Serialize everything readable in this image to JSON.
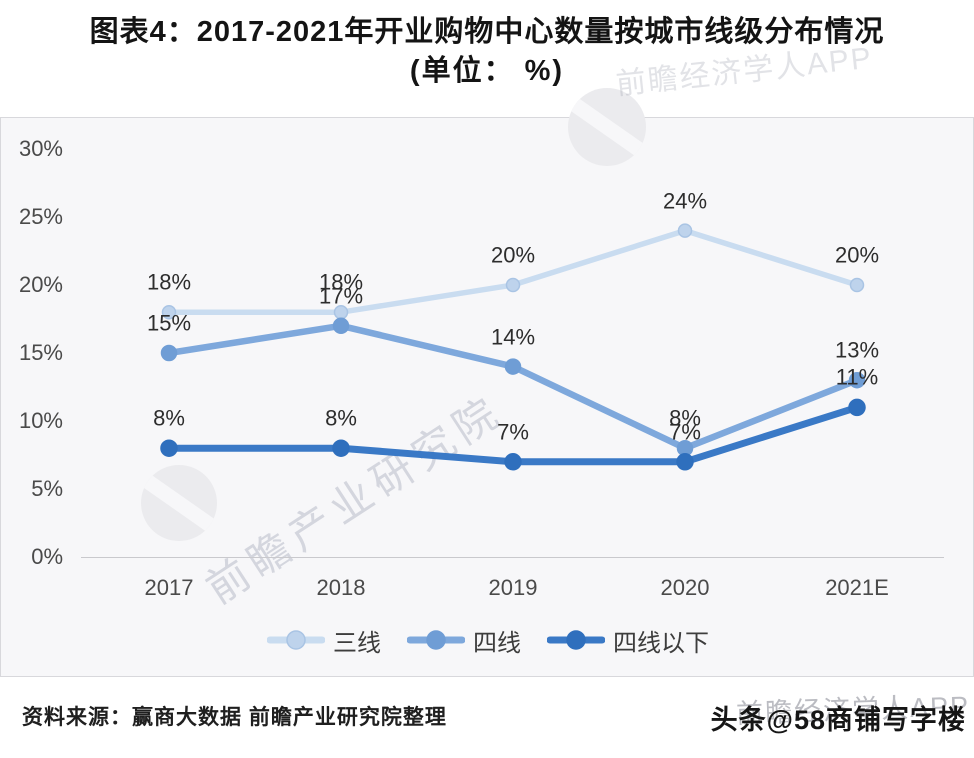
{
  "title": {
    "line1": "图表4：2017-2021年开业购物中心数量按城市线级分布情况",
    "line2": "(单位： %)"
  },
  "chart_data": {
    "type": "line",
    "categories": [
      "2017",
      "2018",
      "2019",
      "2020",
      "2021E"
    ],
    "series": [
      {
        "name": "三线",
        "values": [
          18,
          18,
          20,
          24,
          20
        ],
        "color": "#c9dcf0",
        "marker_color": "#bed3ec",
        "marker_stroke": "#a9c4e4"
      },
      {
        "name": "四线",
        "values": [
          15,
          17,
          14,
          8,
          13
        ],
        "color": "#7ea8dc",
        "marker_color": "#6f9dd5",
        "marker_stroke": "#6f9dd5"
      },
      {
        "name": "四线以下",
        "values": [
          8,
          8,
          7,
          7,
          11
        ],
        "color": "#3a79c6",
        "marker_color": "#2f6fbd",
        "marker_stroke": "#2f6fbd"
      }
    ],
    "yticks": [
      0,
      5,
      10,
      15,
      20,
      25,
      30
    ],
    "ytick_suffix": "%",
    "data_label_suffix": "%",
    "ylim": [
      0,
      30
    ],
    "grid": false,
    "legend_position": "bottom",
    "axis_line_color": "#c9c9cd",
    "panel_background": "#f7f7f9"
  },
  "watermarks": {
    "diagonal_text": "前瞻产业研究院",
    "brand_text": "前瞻经济学人APP"
  },
  "footer": {
    "source": "资料来源：赢商大数据 前瞻产业研究院整理",
    "credit": "头条@58商铺写字楼"
  }
}
